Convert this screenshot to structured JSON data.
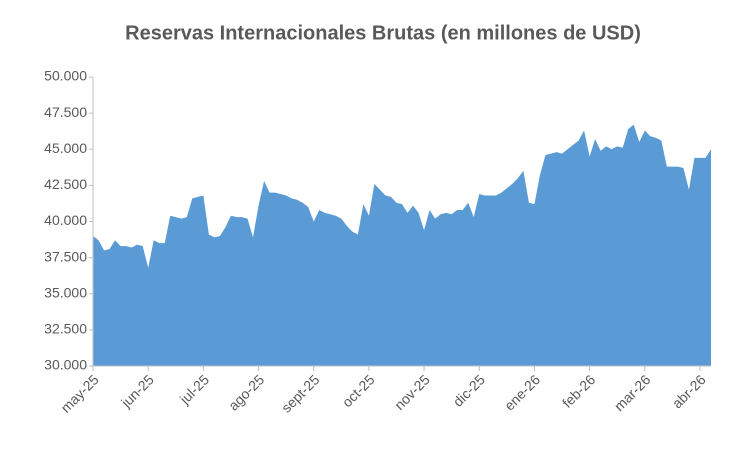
{
  "chart_data": {
    "type": "area",
    "title": "Reservas Internacionales Brutas (en millones de USD)",
    "categories": [
      "may-25",
      null,
      null,
      null,
      null,
      null,
      null,
      null,
      null,
      null,
      "jun-25",
      null,
      null,
      null,
      null,
      null,
      null,
      null,
      null,
      null,
      "jul-25",
      null,
      null,
      null,
      null,
      null,
      null,
      null,
      null,
      null,
      "ago-25",
      null,
      null,
      null,
      null,
      null,
      null,
      null,
      null,
      null,
      "sept-25",
      null,
      null,
      null,
      null,
      null,
      null,
      null,
      null,
      null,
      "oct-25",
      null,
      null,
      null,
      null,
      null,
      null,
      null,
      null,
      null,
      "nov-25",
      null,
      null,
      null,
      null,
      null,
      null,
      null,
      null,
      null,
      "dic-25",
      null,
      null,
      null,
      null,
      null,
      null,
      null,
      null,
      null,
      "ene-26",
      null,
      null,
      null,
      null,
      null,
      null,
      null,
      null,
      null,
      "feb-26",
      null,
      null,
      null,
      null,
      null,
      null,
      null,
      null,
      null,
      "mar-26",
      null,
      null,
      null,
      null,
      null,
      null,
      null,
      null,
      null,
      "abr-26",
      null,
      null
    ],
    "values": [
      39000,
      38700,
      38000,
      38100,
      38700,
      38300,
      38300,
      38200,
      38400,
      38300,
      36800,
      38700,
      38500,
      38500,
      40400,
      40300,
      40200,
      40300,
      41600,
      41700,
      41800,
      39100,
      38900,
      39000,
      39600,
      40400,
      40300,
      40300,
      40200,
      38900,
      41100,
      42800,
      42000,
      42000,
      41900,
      41800,
      41600,
      41500,
      41300,
      41000,
      40000,
      40800,
      40600,
      40500,
      40400,
      40200,
      39700,
      39300,
      39100,
      41200,
      40400,
      42600,
      42200,
      41800,
      41700,
      41300,
      41200,
      40600,
      41100,
      40600,
      39400,
      40800,
      40200,
      40500,
      40600,
      40500,
      40800,
      40800,
      41300,
      40300,
      41900,
      41800,
      41800,
      41800,
      42000,
      42300,
      42600,
      43000,
      43500,
      41300,
      41200,
      43200,
      44600,
      44700,
      44800,
      44700,
      45000,
      45300,
      45600,
      46300,
      44500,
      45700,
      44900,
      45200,
      45000,
      45200,
      45100,
      46400,
      46700,
      45500,
      46300,
      45900,
      45800,
      45600,
      43800,
      43800,
      43800,
      43700,
      42200,
      44400,
      44400,
      44400,
      45000
    ],
    "color": "#5b9bd5",
    "ylim": [
      30000,
      50000
    ],
    "yticks": [
      {
        "value": 30000,
        "label": "30.000"
      },
      {
        "value": 32500,
        "label": "32.500"
      },
      {
        "value": 35000,
        "label": "35.000"
      },
      {
        "value": 37500,
        "label": "37.500"
      },
      {
        "value": 40000,
        "label": "40.000"
      },
      {
        "value": 42500,
        "label": "42.500"
      },
      {
        "value": 45000,
        "label": "45.000"
      },
      {
        "value": 47500,
        "label": "47.500"
      },
      {
        "value": 50000,
        "label": "50.000"
      }
    ],
    "grid": false
  }
}
